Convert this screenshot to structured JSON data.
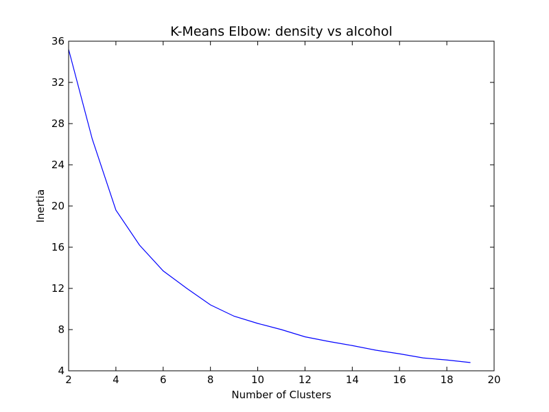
{
  "chart_data": {
    "type": "line",
    "title": "K-Means Elbow: density vs alcohol",
    "xlabel": "Number of Clusters",
    "ylabel": "Inertia",
    "xlim": [
      2,
      20
    ],
    "ylim": [
      4,
      36
    ],
    "xticks": [
      2,
      4,
      6,
      8,
      10,
      12,
      14,
      16,
      18,
      20
    ],
    "yticks": [
      4,
      8,
      12,
      16,
      20,
      24,
      28,
      32,
      36
    ],
    "grid": false,
    "series": [
      {
        "color": "#0000ff",
        "x": [
          2,
          3,
          4,
          5,
          6,
          7,
          8,
          9,
          10,
          11,
          12,
          13,
          14,
          15,
          16,
          17,
          18,
          19
        ],
        "y": [
          35.2,
          26.5,
          19.6,
          16.2,
          13.7,
          12.0,
          10.4,
          9.3,
          8.6,
          8.0,
          7.3,
          6.85,
          6.45,
          6.0,
          5.65,
          5.25,
          5.05,
          4.8
        ]
      }
    ]
  }
}
